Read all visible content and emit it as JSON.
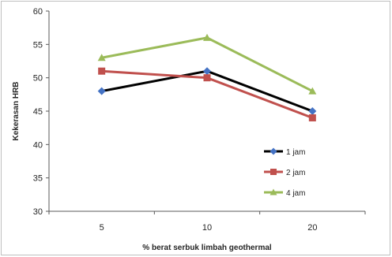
{
  "chart_data": {
    "type": "line",
    "categories": [
      "5",
      "10",
      "20"
    ],
    "series": [
      {
        "name": "1 jam",
        "values": [
          48,
          51,
          45
        ],
        "color": "#000000",
        "marker_color": "#4472c4",
        "marker": "diamond"
      },
      {
        "name": "2 jam",
        "values": [
          51,
          50,
          44
        ],
        "color": "#c0504d",
        "marker_color": "#c0504d",
        "marker": "square"
      },
      {
        "name": "4 jam",
        "values": [
          53,
          56,
          48
        ],
        "color": "#9bbb59",
        "marker_color": "#9bbb59",
        "marker": "triangle"
      }
    ],
    "xlabel": "% berat serbuk limbah geothermal",
    "ylabel": "Kekerasan HRB",
    "ylim": [
      30,
      60
    ],
    "yticks": [
      "30",
      "35",
      "40",
      "45",
      "50",
      "55",
      "60"
    ],
    "grid": false,
    "legend_position": "right"
  }
}
